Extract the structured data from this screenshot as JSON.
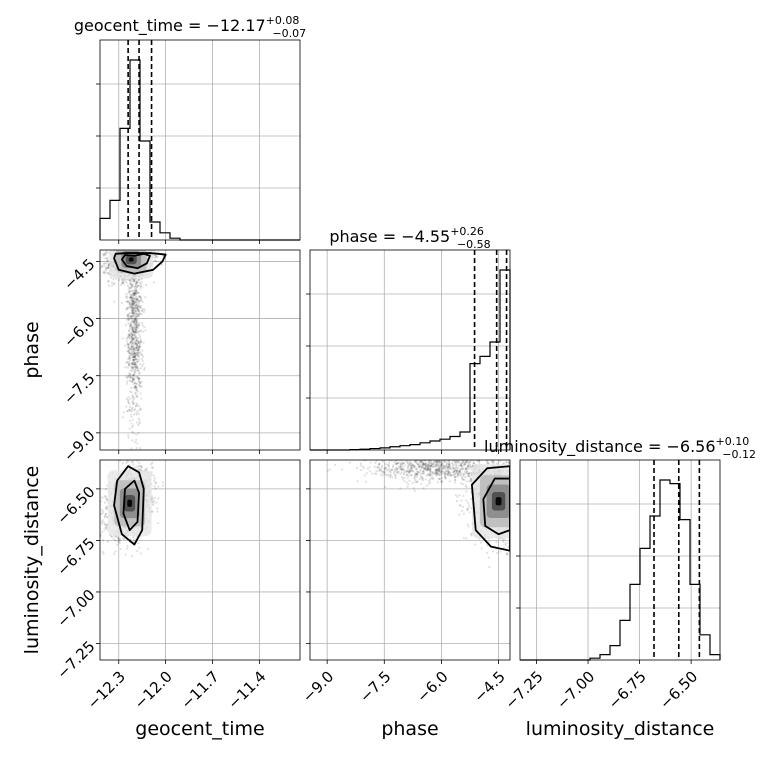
{
  "chart_data": {
    "type": "corner",
    "parameters": [
      "geocent_time",
      "phase",
      "luminosity_distance"
    ],
    "axis_labels": {
      "geocent_time": "geocent_time",
      "phase": "phase",
      "luminosity_distance": "luminosity_distance"
    },
    "titles": [
      {
        "param": "geocent_time",
        "name": "geocent_time",
        "median": "−12.17",
        "plus": "+0.08",
        "minus": "−0.07"
      },
      {
        "param": "phase",
        "name": "phase",
        "median": "−4.55",
        "plus": "+0.26",
        "minus": "−0.58"
      },
      {
        "param": "luminosity_distance",
        "name": "luminosity_distance",
        "median": "−6.56",
        "plus": "+0.10",
        "minus": "−0.12"
      }
    ],
    "ranges": {
      "geocent_time": [
        -12.42,
        -11.14
      ],
      "phase": [
        -9.45,
        -4.2
      ],
      "luminosity_distance": [
        -7.33,
        -6.36
      ]
    },
    "ticks": {
      "geocent_time": [
        -12.3,
        -12.0,
        -11.7,
        -11.4
      ],
      "phase": [
        -9.0,
        -7.5,
        -6.0,
        -4.5
      ],
      "luminosity_distance": [
        -7.25,
        -7.0,
        -6.75,
        -6.5
      ]
    },
    "tick_labels": {
      "geocent_time": [
        "−12.3",
        "−12.0",
        "−11.7",
        "−11.4"
      ],
      "phase": [
        "−9.0",
        "−7.5",
        "−6.0",
        "−4.5"
      ],
      "luminosity_distance": [
        "−7.25",
        "−7.00",
        "−6.75",
        "−6.50"
      ]
    },
    "quantiles": {
      "geocent_time": [
        -12.24,
        -12.17,
        -12.09
      ],
      "phase": [
        -5.13,
        -4.55,
        -4.29
      ],
      "luminosity_distance": [
        -6.68,
        -6.56,
        -6.46
      ]
    },
    "histograms": {
      "geocent_time": {
        "edges": [
          -12.42,
          -12.356,
          -12.292,
          -12.228,
          -12.164,
          -12.1,
          -12.036,
          -11.972,
          -11.908,
          -11.844,
          -11.78,
          -11.716,
          -11.652,
          -11.588,
          -11.524,
          -11.46,
          -11.396,
          -11.332,
          -11.268,
          -11.204,
          -11.14
        ],
        "counts": [
          0.12,
          0.22,
          0.62,
          1.0,
          0.55,
          0.1,
          0.04,
          0.01,
          0,
          0,
          0,
          0,
          0,
          0,
          0,
          0,
          0,
          0,
          0,
          0
        ]
      },
      "phase": {
        "edges": [
          -9.45,
          -9.1875,
          -8.925,
          -8.6625,
          -8.4,
          -8.1375,
          -7.875,
          -7.6125,
          -7.35,
          -7.0875,
          -6.825,
          -6.5625,
          -6.3,
          -6.0375,
          -5.775,
          -5.5125,
          -5.25,
          -4.9875,
          -4.725,
          -4.4625,
          -4.2
        ],
        "counts": [
          0,
          0,
          0,
          0,
          0.002,
          0.004,
          0.008,
          0.012,
          0.018,
          0.024,
          0.03,
          0.04,
          0.05,
          0.06,
          0.075,
          0.1,
          0.48,
          0.52,
          0.6,
          1.0
        ]
      },
      "luminosity_distance": {
        "edges": [
          -7.33,
          -7.2815,
          -7.233,
          -7.1845,
          -7.136,
          -7.0875,
          -7.039,
          -6.9905,
          -6.942,
          -6.8935,
          -6.845,
          -6.7965,
          -6.748,
          -6.6995,
          -6.651,
          -6.6025,
          -6.554,
          -6.5055,
          -6.457,
          -6.4085,
          -6.36
        ],
        "counts": [
          0,
          0,
          0,
          0,
          0,
          0,
          0,
          0.01,
          0.03,
          0.08,
          0.22,
          0.42,
          0.62,
          0.8,
          1.0,
          0.98,
          0.78,
          0.42,
          0.14,
          0.03
        ]
      }
    },
    "hist2d": {
      "phase_vs_geocent_time": {
        "x": "geocent_time",
        "y": "phase",
        "core": {
          "x": -12.22,
          "y": -4.45,
          "sx": 0.07,
          "sy": 0.25,
          "rho": 0.2
        },
        "tail": {
          "x": -12.2,
          "y": -6.2,
          "sx": 0.025,
          "sy": 1.3,
          "rho": 0.0
        },
        "contours": [
          [
            [
              -12.28,
              -4.45
            ],
            [
              -12.25,
              -4.62
            ],
            [
              -12.18,
              -4.68
            ],
            [
              -12.12,
              -4.55
            ],
            [
              -12.1,
              -4.35
            ],
            [
              -12.14,
              -4.3
            ],
            [
              -12.2,
              -4.35
            ],
            [
              -12.26,
              -4.33
            ]
          ],
          [
            [
              -12.33,
              -4.42
            ],
            [
              -12.3,
              -4.72
            ],
            [
              -12.2,
              -4.82
            ],
            [
              -12.08,
              -4.72
            ],
            [
              -12.02,
              -4.5
            ],
            [
              -12.0,
              -4.32
            ],
            [
              -12.1,
              -4.28
            ],
            [
              -12.25,
              -4.28
            ],
            [
              -12.32,
              -4.3
            ]
          ]
        ]
      },
      "luminosity_distance_vs_geocent_time": {
        "x": "geocent_time",
        "y": "luminosity_distance",
        "core": {
          "x": -12.23,
          "y": -6.57,
          "sx": 0.07,
          "sy": 0.08,
          "rho": 0.3
        },
        "contours": [
          [
            [
              -12.26,
              -6.5
            ],
            [
              -12.27,
              -6.62
            ],
            [
              -12.23,
              -6.7
            ],
            [
              -12.18,
              -6.66
            ],
            [
              -12.17,
              -6.52
            ],
            [
              -12.2,
              -6.46
            ]
          ],
          [
            [
              -12.31,
              -6.46
            ],
            [
              -12.33,
              -6.58
            ],
            [
              -12.28,
              -6.72
            ],
            [
              -12.2,
              -6.77
            ],
            [
              -12.15,
              -6.7
            ],
            [
              -12.14,
              -6.5
            ],
            [
              -12.17,
              -6.42
            ],
            [
              -12.24,
              -6.39
            ]
          ]
        ]
      },
      "luminosity_distance_vs_phase": {
        "x": "phase",
        "y": "luminosity_distance",
        "core": {
          "x": -4.5,
          "y": -6.56,
          "sx": 0.35,
          "sy": 0.09,
          "rho": 0.0
        },
        "tail": {
          "x": -6.0,
          "y": -6.4,
          "sx": 1.0,
          "sy": 0.035,
          "rho": 0.0
        },
        "contours": [
          [
            [
              -4.2,
              -6.45
            ],
            [
              -4.6,
              -6.45
            ],
            [
              -4.9,
              -6.55
            ],
            [
              -4.85,
              -6.68
            ],
            [
              -4.5,
              -6.72
            ],
            [
              -4.2,
              -6.7
            ]
          ],
          [
            [
              -4.2,
              -6.39
            ],
            [
              -4.8,
              -6.4
            ],
            [
              -5.2,
              -6.48
            ],
            [
              -5.1,
              -6.7
            ],
            [
              -4.7,
              -6.78
            ],
            [
              -4.2,
              -6.8
            ]
          ]
        ]
      }
    }
  }
}
